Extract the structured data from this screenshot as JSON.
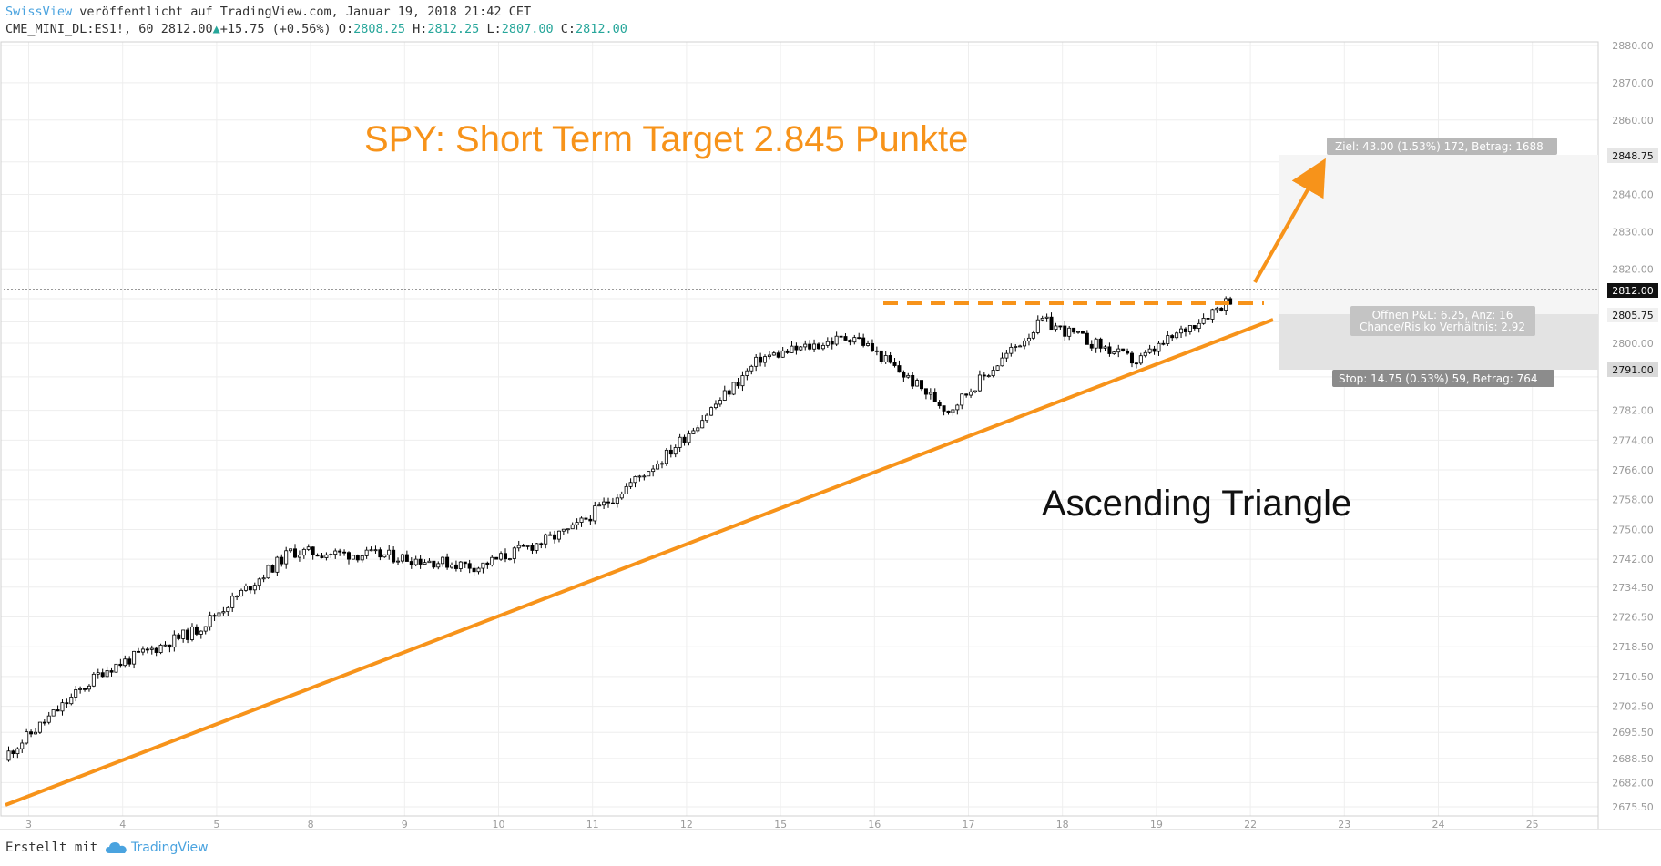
{
  "header": {
    "publisher": "SwissView",
    "published_text": " veröffentlicht auf TradingView.com, Januar 19, 2018 21:42 CET",
    "symbol": "CME_MINI_DL:ES1!, 60",
    "last_price": "2812.00",
    "change": "+15.75 (+0.56%)",
    "open_label": "O:",
    "open_value": "2808.25",
    "high_label": "H:",
    "high_value": "2812.25",
    "low_label": "L:",
    "low_value": "2807.00",
    "close_label": "C:",
    "close_value": "2812.00"
  },
  "annotations": {
    "title": "SPY: Short Term Target 2.845 Punkte",
    "pattern": "Ascending Triangle",
    "target_label": "Ziel: 43.00 (1.53%) 172, Betrag: 1688",
    "pnl_label_1": "Offnen P&L: 6.25, Anz: 16",
    "pnl_label_2": "Chance/Risiko Verhältnis: 2.92",
    "stop_label": "Stop: 14.75 (0.53%) 59, Betrag: 764"
  },
  "price_badges": {
    "target": "2848.75",
    "current": "2812.00",
    "entry": "2805.75",
    "stop": "2791.00"
  },
  "footer": {
    "made_with": "Erstellt mit",
    "brand": "TradingView"
  },
  "colors": {
    "candle": "#000000",
    "orange": "#f7931a",
    "title_orange": "#f7931a",
    "grid": "#eeeeee",
    "tv_blue": "#4aa3df"
  },
  "chart_data": {
    "type": "candlestick",
    "title": "SPY: Short Term Target 2.845 Punkte",
    "x_tick_labels": [
      "3",
      "4",
      "5",
      "8",
      "9",
      "10",
      "11",
      "12",
      "15",
      "16",
      "17",
      "18",
      "19",
      "22",
      "23",
      "24",
      "25"
    ],
    "y_tick_labels": [
      "2880.00",
      "2870.00",
      "2860.00",
      "2848.75",
      "2840.00",
      "2830.00",
      "2820.00",
      "2812.00",
      "2805.75",
      "2800.00",
      "2791.00",
      "2782.00",
      "2774.00",
      "2766.00",
      "2758.00",
      "2750.00",
      "2742.00",
      "2734.50",
      "2726.50",
      "2718.50",
      "2710.50",
      "2702.50",
      "2695.50",
      "2688.50",
      "2682.00",
      "2675.50"
    ],
    "ylim": [
      2675.5,
      2880.0
    ],
    "close_series_approx": [
      [
        "3",
        2690.0
      ],
      [
        "4",
        2712.0
      ],
      [
        "5",
        2723.0
      ],
      [
        "8",
        2744.0
      ],
      [
        "9",
        2743.0
      ],
      [
        "10",
        2740.0
      ],
      [
        "11",
        2750.0
      ],
      [
        "12",
        2770.0
      ],
      [
        "15",
        2796.0
      ],
      [
        "16",
        2802.0
      ],
      [
        "17",
        2782.0
      ],
      [
        "18",
        2806.0
      ],
      [
        "19",
        2795.0
      ],
      [
        "22",
        2812.0
      ]
    ],
    "annotations": {
      "resistance": 2808.5,
      "target": 2848.75,
      "entry": 2805.75,
      "stop": 2791.0
    }
  }
}
